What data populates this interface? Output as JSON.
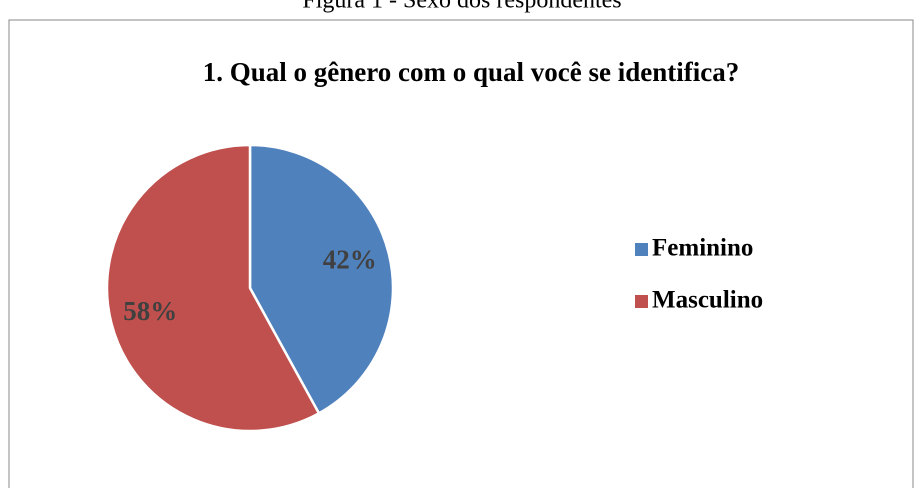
{
  "caption": "Figura 1 - Sexo dos respondentes",
  "chart_data": {
    "type": "pie",
    "title": "1. Qual o gênero com o qual você se identifica?",
    "categories": [
      "Feminino",
      "Masculino"
    ],
    "values": [
      42,
      58
    ],
    "value_labels": [
      "42%",
      "58%"
    ],
    "colors": [
      "#4f81bd",
      "#c0504d"
    ],
    "legend": "right"
  }
}
